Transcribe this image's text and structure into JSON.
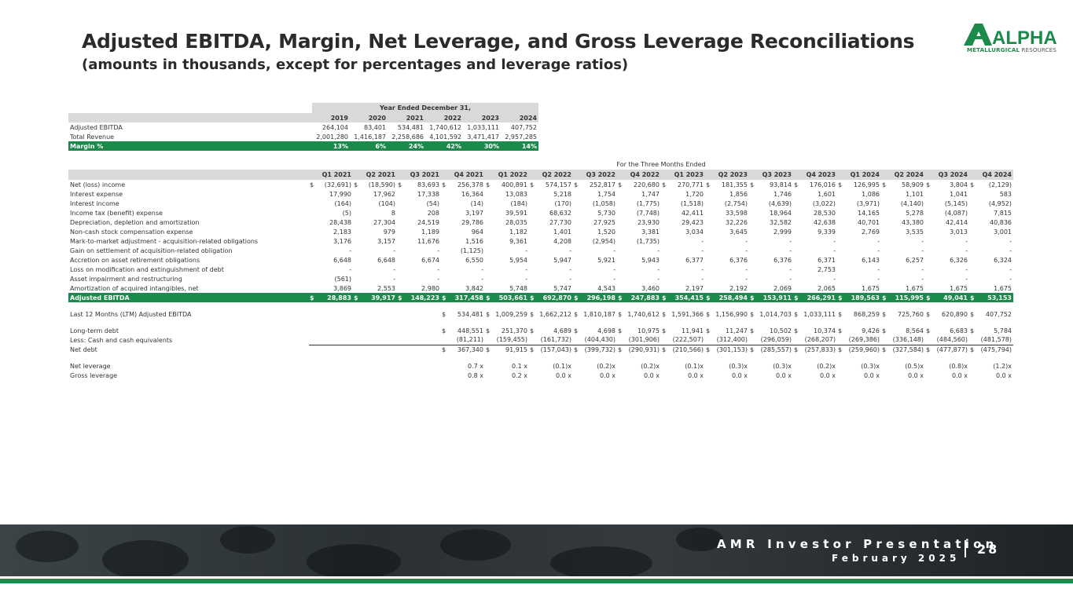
{
  "header": {
    "title": "Adjusted EBITDA, Margin, Net Leverage, and Gross Leverage Reconciliations",
    "subtitle": "(amounts in thousands, except for percentages and leverage ratios)"
  },
  "logo": {
    "main": "ALPHA",
    "sub_a": "METALLURGICAL",
    "sub_b": " RESOURCES"
  },
  "annual": {
    "group_header": "Year Ended December 31,",
    "years": [
      "2019",
      "2020",
      "2021",
      "2022",
      "2023",
      "2024"
    ],
    "rows": [
      {
        "label": "Adjusted EBITDA",
        "values": [
          "264,104",
          "83,401",
          "534,481",
          "1,740,612",
          "1,033,111",
          "407,752"
        ]
      },
      {
        "label": "Total Revenue",
        "values": [
          "2,001,280",
          "1,416,187",
          "2,258,686",
          "4,101,592",
          "3,471,417",
          "2,957,285"
        ]
      },
      {
        "label": "Margin %",
        "values": [
          "13%",
          "6%",
          "24%",
          "42%",
          "30%",
          "14%"
        ]
      }
    ]
  },
  "quarterly": {
    "group_header": "For the Three Months Ended",
    "quarters": [
      "Q1 2021",
      "Q2 2021",
      "Q3 2021",
      "Q4 2021",
      "Q1 2022",
      "Q2 2022",
      "Q3 2022",
      "Q4 2022",
      "Q1 2023",
      "Q2 2023",
      "Q3 2023",
      "Q4 2023",
      "Q1 2024",
      "Q2 2024",
      "Q3 2024",
      "Q4 2024"
    ],
    "rows": [
      {
        "label": "Net (loss) income",
        "dollar": true,
        "values": [
          "(32,691)",
          "(18,590)",
          "83,693",
          "256,378",
          "400,891",
          "574,157",
          "252,817",
          "220,680",
          "270,771",
          "181,355",
          "93,814",
          "176,016",
          "126,995",
          "58,909",
          "3,804",
          "(2,129)"
        ]
      },
      {
        "label": "Interest expense",
        "values": [
          "17,990",
          "17,962",
          "17,338",
          "16,364",
          "13,083",
          "5,218",
          "1,754",
          "1,747",
          "1,720",
          "1,856",
          "1,746",
          "1,601",
          "1,086",
          "1,101",
          "1,041",
          "583"
        ]
      },
      {
        "label": "Interest income",
        "values": [
          "(164)",
          "(104)",
          "(54)",
          "(14)",
          "(184)",
          "(170)",
          "(1,058)",
          "(1,775)",
          "(1,518)",
          "(2,754)",
          "(4,639)",
          "(3,022)",
          "(3,971)",
          "(4,140)",
          "(5,145)",
          "(4,952)"
        ]
      },
      {
        "label": "Income tax (benefit) expense",
        "values": [
          "(5)",
          "8",
          "208",
          "3,197",
          "39,591",
          "68,632",
          "5,730",
          "(7,748)",
          "42,411",
          "33,598",
          "18,964",
          "28,530",
          "14,165",
          "5,278",
          "(4,087)",
          "7,815"
        ]
      },
      {
        "label": "Depreciation, depletion and amortization",
        "values": [
          "28,438",
          "27,304",
          "24,519",
          "29,786",
          "28,035",
          "27,730",
          "27,925",
          "23,930",
          "29,423",
          "32,226",
          "32,582",
          "42,638",
          "40,701",
          "43,380",
          "42,414",
          "40,836"
        ]
      },
      {
        "label": "Non-cash stock compensation expense",
        "values": [
          "2,183",
          "979",
          "1,189",
          "964",
          "1,182",
          "1,401",
          "1,520",
          "3,381",
          "3,034",
          "3,645",
          "2,999",
          "9,339",
          "2,769",
          "3,535",
          "3,013",
          "3,001"
        ]
      },
      {
        "label": "Mark-to-market adjustment - acquisition-related obligations",
        "values": [
          "3,176",
          "3,157",
          "11,676",
          "1,516",
          "9,361",
          "4,208",
          "(2,954)",
          "(1,735)",
          "-",
          "-",
          "-",
          "-",
          "-",
          "-",
          "-",
          "-"
        ]
      },
      {
        "label": "Gain on settlement of acquisition-related obligation",
        "values": [
          "-",
          "-",
          "-",
          "(1,125)",
          "-",
          "-",
          "-",
          "-",
          "-",
          "-",
          "-",
          "-",
          "-",
          "-",
          "-",
          "-"
        ]
      },
      {
        "label": "Accretion on asset retirement obligations",
        "values": [
          "6,648",
          "6,648",
          "6,674",
          "6,550",
          "5,954",
          "5,947",
          "5,921",
          "5,943",
          "6,377",
          "6,376",
          "6,376",
          "6,371",
          "6,143",
          "6,257",
          "6,326",
          "6,324"
        ]
      },
      {
        "label": "Loss on modification and extinguishment of debt",
        "values": [
          "-",
          "-",
          "-",
          "-",
          "-",
          "-",
          "-",
          "-",
          "-",
          "-",
          "-",
          "2,753",
          "-",
          "-",
          "-",
          "-"
        ]
      },
      {
        "label": "Asset impairment and restructuring",
        "values": [
          "(561)",
          "-",
          "-",
          "-",
          "-",
          "-",
          "-",
          "-",
          "-",
          "-",
          "-",
          "-",
          "-",
          "-",
          "-",
          "-"
        ]
      },
      {
        "label": "Amortization of acquired intangibles, net",
        "values": [
          "3,869",
          "2,553",
          "2,980",
          "3,842",
          "5,748",
          "5,747",
          "4,543",
          "3,460",
          "2,197",
          "2,192",
          "2,069",
          "2,065",
          "1,675",
          "1,675",
          "1,675",
          "1,675"
        ]
      },
      {
        "label": "Adjusted EBITDA",
        "dollar": true,
        "total": true,
        "values": [
          "28,883",
          "39,917",
          "148,223",
          "317,458",
          "503,661",
          "692,870",
          "296,198",
          "247,883",
          "354,415",
          "258,494",
          "153,911",
          "266,291",
          "189,563",
          "115,995",
          "49,041",
          "53,153"
        ]
      }
    ],
    "ltm": {
      "label": "Last 12 Months (LTM) Adjusted EBITDA",
      "values": [
        "534,481",
        "1,009,259",
        "1,662,212",
        "1,810,187",
        "1,740,612",
        "1,591,366",
        "1,156,990",
        "1,014,703",
        "1,033,111",
        "868,259",
        "725,760",
        "620,890",
        "407,752"
      ]
    },
    "debt": [
      {
        "label": "Long-term debt",
        "dollar": true,
        "values": [
          "448,551",
          "251,370",
          "4,689",
          "4,698",
          "10,975",
          "11,941",
          "11,247",
          "10,502",
          "10,374",
          "9,426",
          "8,564",
          "6,683",
          "5,784"
        ]
      },
      {
        "label": "Less: Cash and cash equivalents",
        "underline": true,
        "values": [
          "(81,211)",
          "(159,455)",
          "(161,732)",
          "(404,430)",
          "(301,906)",
          "(222,507)",
          "(312,400)",
          "(296,059)",
          "(268,207)",
          "(269,386)",
          "(336,148)",
          "(484,560)",
          "(481,578)"
        ]
      },
      {
        "label": "Net debt",
        "dollar": true,
        "values": [
          "367,340",
          "91,915",
          "(157,043)",
          "(399,732)",
          "(290,931)",
          "(210,566)",
          "(301,153)",
          "(285,557)",
          "(257,833)",
          "(259,960)",
          "(327,584)",
          "(477,877)",
          "(475,794)"
        ]
      }
    ],
    "leverage": [
      {
        "label": "Net leverage",
        "values": [
          "0.7 x",
          "0.1 x",
          "(0.1)x",
          "(0.2)x",
          "(0.2)x",
          "(0.1)x",
          "(0.3)x",
          "(0.3)x",
          "(0.2)x",
          "(0.3)x",
          "(0.5)x",
          "(0.8)x",
          "(1.2)x"
        ]
      },
      {
        "label": "Gross leverage",
        "values": [
          "0.8 x",
          "0.2 x",
          "0.0 x",
          "0.0 x",
          "0.0 x",
          "0.0 x",
          "0.0 x",
          "0.0 x",
          "0.0 x",
          "0.0 x",
          "0.0 x",
          "0.0 x",
          "0.0 x"
        ]
      }
    ],
    "currency_symbol": "$"
  },
  "footer": {
    "presentation": "AMR Investor Presentation",
    "date": "February 2025",
    "page_number": "28"
  },
  "colors": {
    "brand_green": "#1b8a4b",
    "header_gray": "#d9d9d9"
  }
}
